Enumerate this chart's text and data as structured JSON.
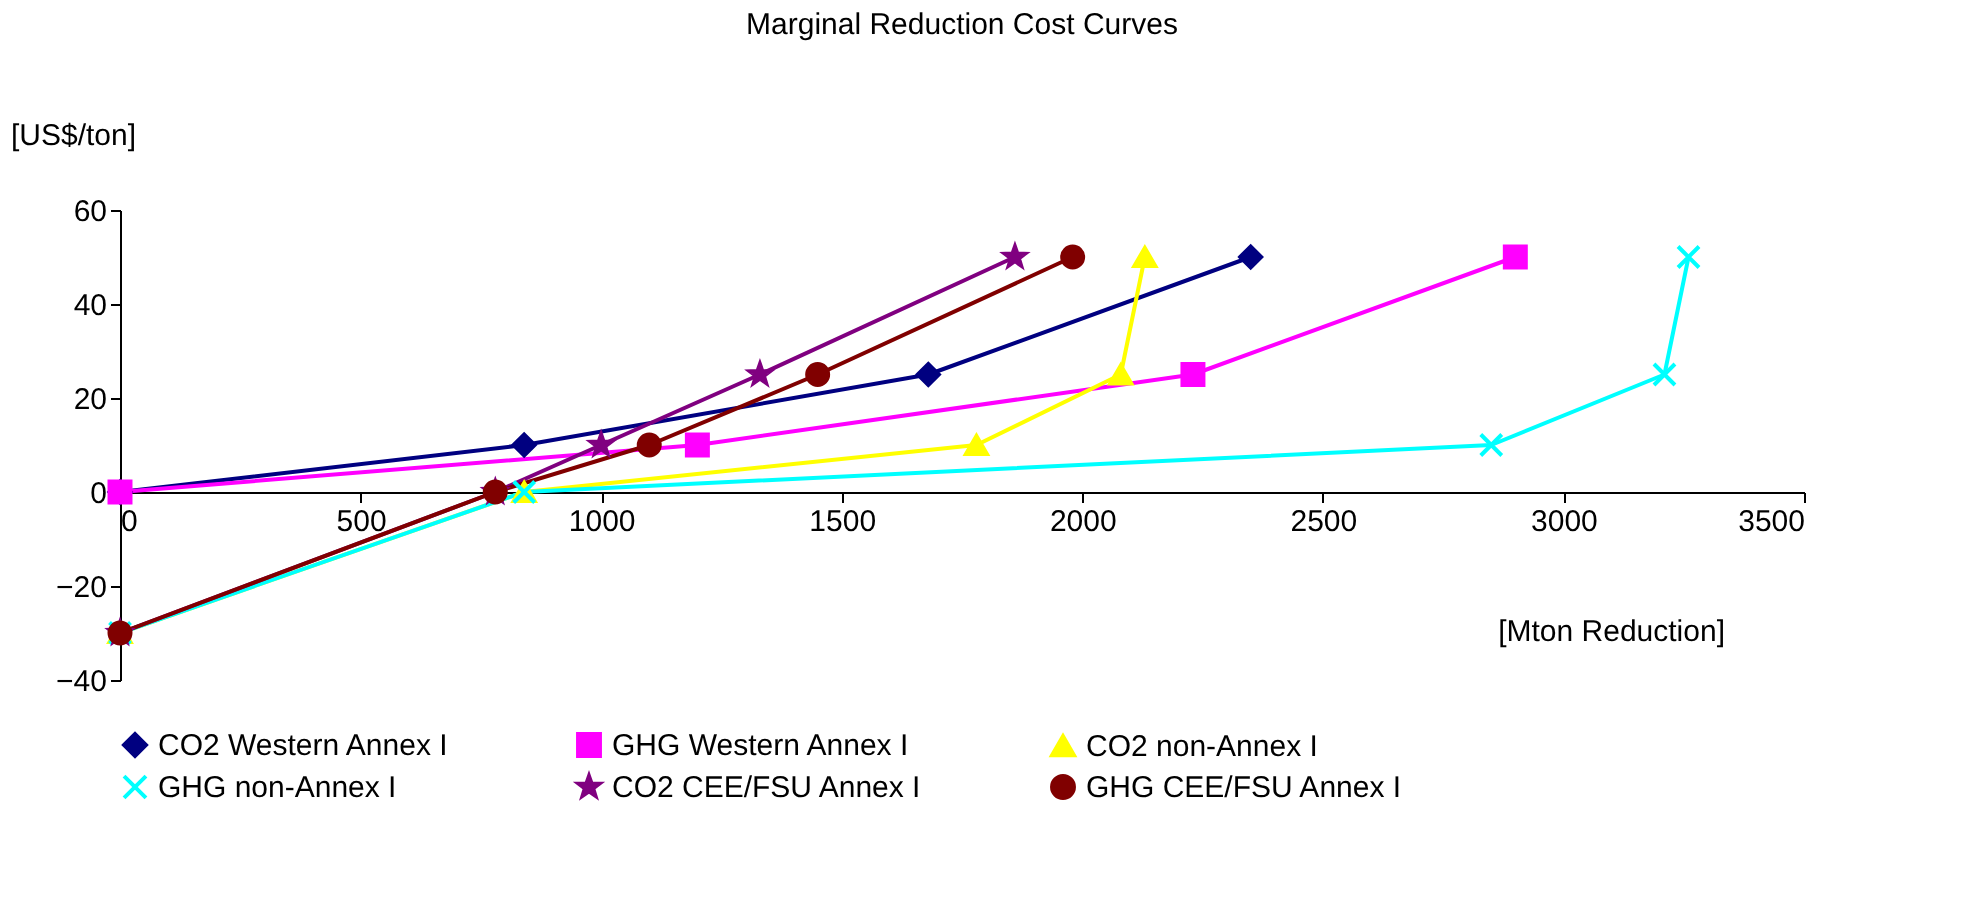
{
  "chart_data": {
    "type": "line",
    "title": "Marginal Reduction Cost Curves",
    "xlabel": "[Mton Reduction]",
    "ylabel": "[US$/ton]",
    "xlim": [
      0,
      3500
    ],
    "xticks": [
      0,
      500,
      1000,
      1500,
      2000,
      2500,
      3000,
      3500
    ],
    "ylim": [
      -40,
      60
    ],
    "yticks": [
      -40,
      -20,
      0,
      20,
      40,
      60
    ],
    "grid": false,
    "legend": "bottom",
    "series": [
      {
        "name": "CO2 Western Annex I",
        "color": "#000080",
        "marker": "diamond",
        "x": [
          0,
          840,
          1680,
          2350
        ],
        "values": [
          0,
          10,
          25,
          50
        ]
      },
      {
        "name": "GHG Western Annex I",
        "color": "#ff00ff",
        "marker": "square",
        "x": [
          0,
          1200,
          2230,
          2900
        ],
        "values": [
          0,
          10,
          25,
          50
        ]
      },
      {
        "name": "CO2 non-Annex I",
        "color": "#ffff00",
        "marker": "triangle",
        "x": [
          0,
          840,
          1780,
          2080,
          2130
        ],
        "values": [
          -30,
          0,
          10,
          25,
          50
        ]
      },
      {
        "name": "GHG non-Annex I",
        "color": "#00ffff",
        "marker": "cross",
        "x": [
          0,
          840,
          2850,
          3210,
          3260
        ],
        "values": [
          -30,
          0,
          10,
          25,
          50
        ]
      },
      {
        "name": "CO2 CEE/FSU Annex I",
        "color": "#800080",
        "marker": "star",
        "x": [
          0,
          780,
          1000,
          1330,
          1860
        ],
        "values": [
          -30,
          0,
          10,
          25,
          50
        ]
      },
      {
        "name": "GHG CEE/FSU Annex I",
        "color": "#800000",
        "marker": "circle",
        "x": [
          0,
          780,
          1100,
          1450,
          1980
        ],
        "values": [
          -30,
          0,
          10,
          25,
          50
        ]
      }
    ]
  }
}
